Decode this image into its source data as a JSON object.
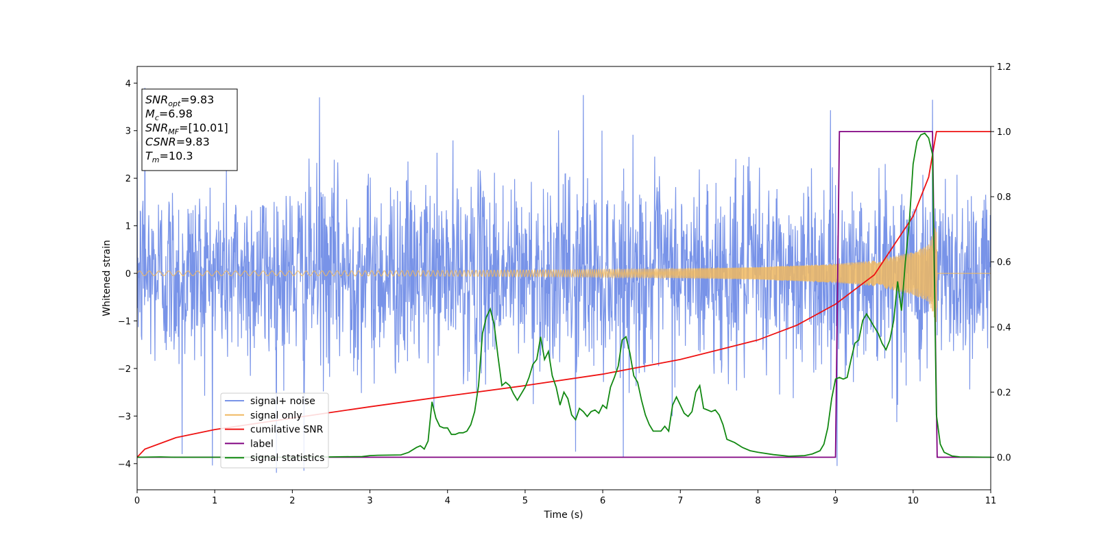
{
  "chart_data": {
    "type": "line",
    "xlabel": "Time (s)",
    "ylabel": "Whitened strain",
    "xlim": [
      0,
      11
    ],
    "ylim_left": [
      -4.55,
      4.35
    ],
    "ylim_right": [
      -0.1,
      1.2
    ],
    "x_ticks": [
      "0",
      "1",
      "2",
      "3",
      "4",
      "5",
      "6",
      "7",
      "8",
      "9",
      "10",
      "11"
    ],
    "y_ticks_left": [
      "4",
      "3",
      "2",
      "1",
      "0",
      "−1",
      "−2",
      "−3",
      "−4"
    ],
    "y_ticks_right": [
      "1.2",
      "1.0",
      "0.8",
      "0.6",
      "0.4",
      "0.2",
      "0.0"
    ],
    "y_tick_values_left": [
      4,
      3,
      2,
      1,
      0,
      -1,
      -2,
      -3,
      -4
    ],
    "y_tick_values_right": [
      1.2,
      1.0,
      0.8,
      0.6,
      0.4,
      0.2,
      0.0
    ],
    "legend_position": "lower-left",
    "annotation": [
      {
        "name": "SNR",
        "sub": "opt",
        "value": "=9.83"
      },
      {
        "name": "M",
        "sub": "c",
        "value": "=6.98"
      },
      {
        "name": "SNR",
        "sub": "MF",
        "value": "=[10.01]"
      },
      {
        "name": "CSNR",
        "sub": "",
        "value": "=9.83"
      },
      {
        "name": "T",
        "sub": "m",
        "value": "=10.3"
      }
    ],
    "series": [
      {
        "name": "signal+ noise",
        "axis": "left",
        "color": "#7893e8",
        "kind": "noise",
        "sigma": 1.0,
        "spike_max": [
          [
            0.1,
            3.9
          ],
          [
            2.35,
            3.7
          ],
          [
            5.75,
            3.75
          ],
          [
            10.25,
            3.65
          ]
        ],
        "spike_min": [
          [
            0.58,
            -3.8
          ],
          [
            2.15,
            -4.15
          ],
          [
            5.65,
            -3.75
          ],
          [
            9.02,
            -4.05
          ]
        ]
      },
      {
        "name": "signal only",
        "axis": "left",
        "color": "#f0b860",
        "kind": "chirp",
        "envelope": {
          "x": [
            0,
            2,
            4,
            6,
            7,
            8,
            9,
            9.5,
            10,
            10.2,
            10.3,
            10.31,
            11
          ],
          "y": [
            0.05,
            0.05,
            0.06,
            0.08,
            0.1,
            0.13,
            0.2,
            0.27,
            0.45,
            0.6,
            1.05,
            0,
            0
          ]
        }
      },
      {
        "name": "cumilative SNR",
        "axis": "right",
        "color": "#ee1111",
        "x": [
          0,
          0.1,
          0.5,
          1,
          2,
          3,
          4,
          5,
          6,
          7,
          8,
          8.5,
          9,
          9.5,
          10,
          10.2,
          10.3,
          10.31,
          11
        ],
        "y": [
          0.0,
          0.025,
          0.06,
          0.085,
          0.12,
          0.155,
          0.188,
          0.22,
          0.255,
          0.3,
          0.36,
          0.405,
          0.47,
          0.56,
          0.74,
          0.86,
          1.0,
          1.0,
          1.0
        ]
      },
      {
        "name": "label",
        "axis": "right",
        "color": "#800080",
        "x": [
          0,
          9.0,
          9.05,
          10.25,
          10.31,
          11
        ],
        "y": [
          0,
          0,
          1,
          1,
          0,
          0
        ]
      },
      {
        "name": "signal statistics",
        "axis": "right",
        "color": "#118811",
        "x": [
          0,
          0.3,
          0.5,
          1.0,
          1.5,
          2.0,
          2.5,
          2.9,
          3.0,
          3.1,
          3.4,
          3.5,
          3.6,
          3.65,
          3.7,
          3.75,
          3.8,
          3.85,
          3.9,
          3.95,
          4.0,
          4.05,
          4.1,
          4.15,
          4.2,
          4.25,
          4.3,
          4.35,
          4.4,
          4.45,
          4.5,
          4.55,
          4.6,
          4.65,
          4.7,
          4.75,
          4.8,
          4.85,
          4.9,
          4.95,
          5.0,
          5.05,
          5.1,
          5.15,
          5.2,
          5.25,
          5.3,
          5.35,
          5.4,
          5.45,
          5.5,
          5.55,
          5.6,
          5.65,
          5.7,
          5.75,
          5.8,
          5.85,
          5.9,
          5.95,
          6.0,
          6.05,
          6.1,
          6.15,
          6.2,
          6.25,
          6.3,
          6.35,
          6.4,
          6.45,
          6.5,
          6.55,
          6.6,
          6.65,
          6.7,
          6.75,
          6.8,
          6.85,
          6.9,
          6.95,
          7.0,
          7.05,
          7.1,
          7.15,
          7.2,
          7.25,
          7.3,
          7.35,
          7.4,
          7.45,
          7.5,
          7.55,
          7.6,
          7.7,
          7.8,
          7.9,
          8.0,
          8.2,
          8.4,
          8.6,
          8.7,
          8.8,
          8.85,
          8.9,
          8.95,
          9.0,
          9.05,
          9.1,
          9.15,
          9.2,
          9.25,
          9.3,
          9.35,
          9.4,
          9.45,
          9.5,
          9.55,
          9.6,
          9.65,
          9.7,
          9.75,
          9.8,
          9.85,
          9.9,
          9.95,
          10.0,
          10.05,
          10.1,
          10.15,
          10.2,
          10.25,
          10.3,
          10.35,
          10.4,
          10.5,
          10.6,
          11
        ],
        "y": [
          0.0,
          0.001,
          0.0,
          0.0,
          0.0,
          0.0,
          0.001,
          0.002,
          0.005,
          0.006,
          0.007,
          0.015,
          0.03,
          0.035,
          0.025,
          0.05,
          0.17,
          0.12,
          0.095,
          0.09,
          0.09,
          0.07,
          0.07,
          0.075,
          0.075,
          0.08,
          0.1,
          0.14,
          0.22,
          0.38,
          0.43,
          0.455,
          0.41,
          0.31,
          0.22,
          0.23,
          0.22,
          0.195,
          0.175,
          0.195,
          0.215,
          0.245,
          0.285,
          0.3,
          0.37,
          0.3,
          0.325,
          0.25,
          0.215,
          0.16,
          0.2,
          0.18,
          0.13,
          0.115,
          0.15,
          0.14,
          0.125,
          0.14,
          0.145,
          0.135,
          0.16,
          0.15,
          0.215,
          0.245,
          0.28,
          0.36,
          0.37,
          0.32,
          0.25,
          0.23,
          0.175,
          0.13,
          0.1,
          0.08,
          0.08,
          0.08,
          0.095,
          0.08,
          0.16,
          0.185,
          0.16,
          0.135,
          0.125,
          0.14,
          0.2,
          0.22,
          0.15,
          0.145,
          0.14,
          0.145,
          0.13,
          0.1,
          0.055,
          0.045,
          0.03,
          0.02,
          0.015,
          0.008,
          0.003,
          0.005,
          0.01,
          0.02,
          0.04,
          0.09,
          0.18,
          0.24,
          0.245,
          0.24,
          0.245,
          0.3,
          0.35,
          0.36,
          0.42,
          0.44,
          0.42,
          0.4,
          0.38,
          0.35,
          0.33,
          0.36,
          0.42,
          0.54,
          0.45,
          0.6,
          0.72,
          0.9,
          0.97,
          0.99,
          0.995,
          0.98,
          0.93,
          0.13,
          0.04,
          0.015,
          0.004,
          0.001,
          0.0
        ]
      }
    ]
  }
}
